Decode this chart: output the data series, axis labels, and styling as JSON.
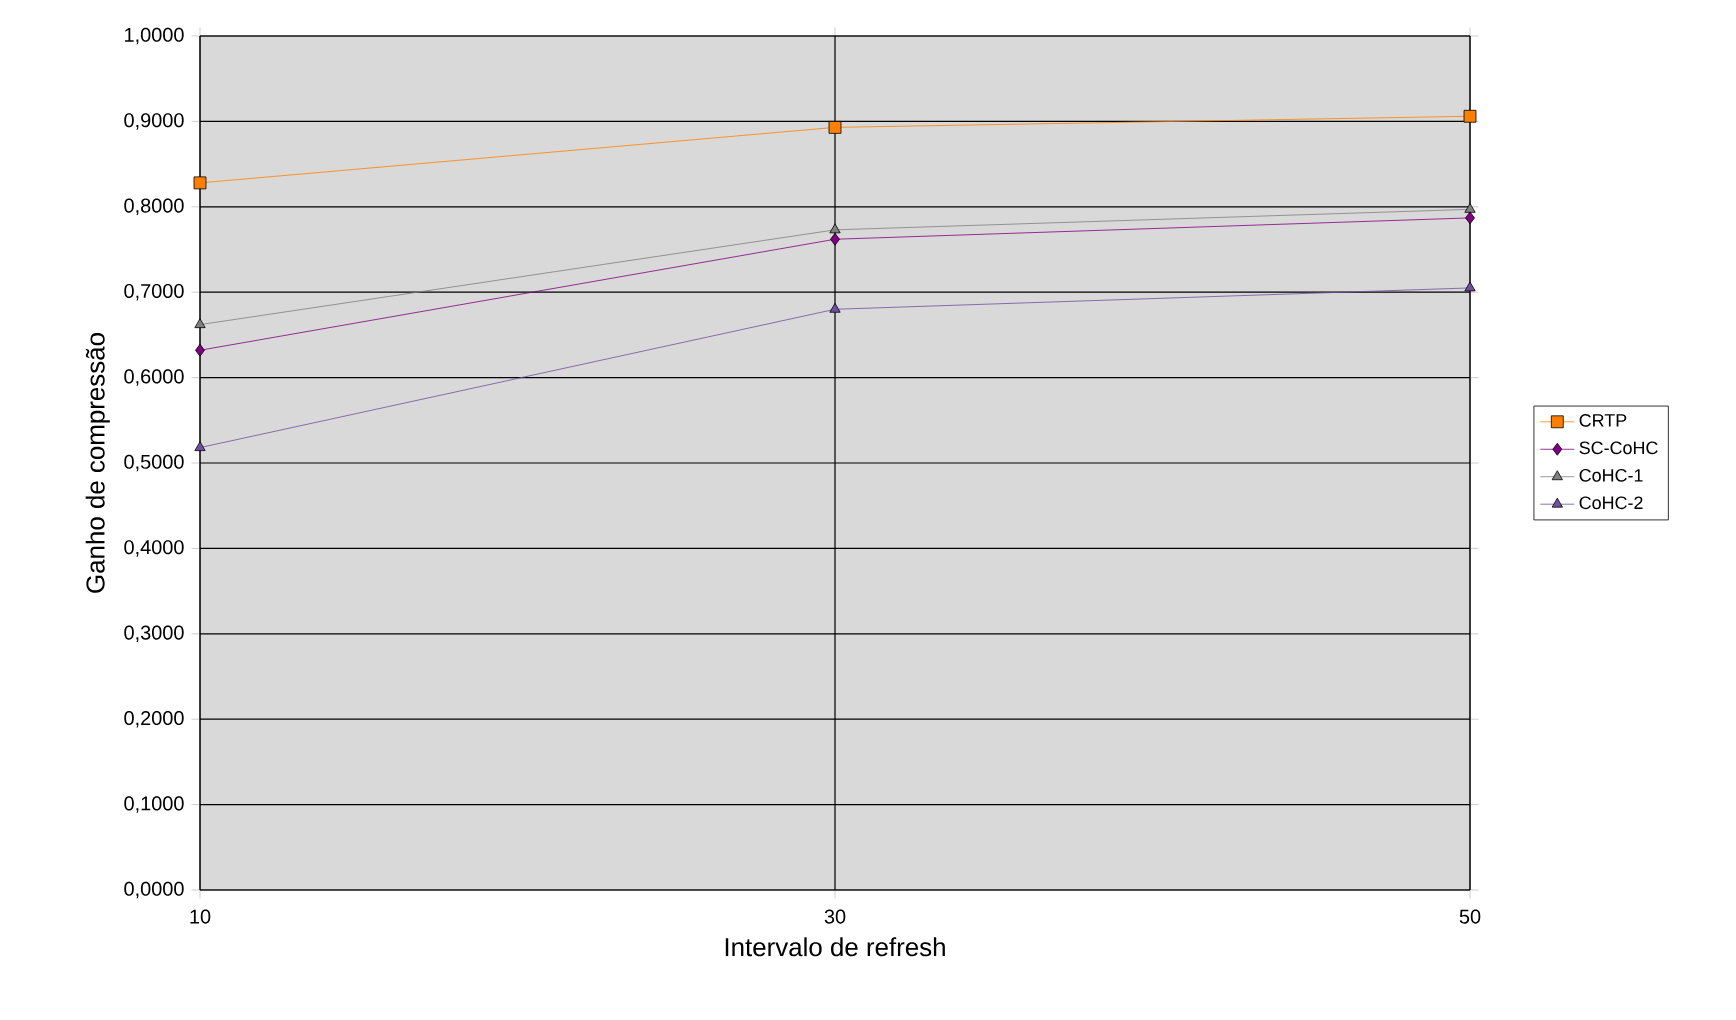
{
  "chart_data": {
    "type": "line",
    "xlabel": "Intervalo de refresh",
    "ylabel": "Ganho de compressão",
    "x": [
      10,
      30,
      50
    ],
    "xlim": [
      10,
      50
    ],
    "xticks": [
      10,
      30,
      50
    ],
    "ylim": [
      0,
      1
    ],
    "yticks": [
      {
        "value": 0,
        "label": "0,0000"
      },
      {
        "value": 0.1,
        "label": "0,1000"
      },
      {
        "value": 0.2,
        "label": "0,2000"
      },
      {
        "value": 0.3,
        "label": "0,3000"
      },
      {
        "value": 0.4,
        "label": "0,4000"
      },
      {
        "value": 0.5,
        "label": "0,5000"
      },
      {
        "value": 0.6,
        "label": "0,6000"
      },
      {
        "value": 0.7,
        "label": "0,7000"
      },
      {
        "value": 0.8,
        "label": "0,8000"
      },
      {
        "value": 0.9,
        "label": "0,9000"
      },
      {
        "value": 1,
        "label": "1,0000"
      }
    ],
    "grid": true,
    "legend": "right",
    "line_style": "solid",
    "series": [
      {
        "name": "CRTP",
        "color": "#ff8000",
        "marker": "square",
        "values": [
          0.828,
          0.893,
          0.906
        ]
      },
      {
        "name": "SC-CoHC",
        "color": "#800080",
        "marker": "diamond",
        "values": [
          0.632,
          0.762,
          0.787
        ]
      },
      {
        "name": "CoHC-1",
        "color": "#808080",
        "marker": "triangle",
        "values": [
          0.662,
          0.773,
          0.797
        ]
      },
      {
        "name": "CoHC-2",
        "color": "#7050a0",
        "marker": "triangle",
        "values": [
          0.518,
          0.68,
          0.705
        ]
      }
    ]
  }
}
